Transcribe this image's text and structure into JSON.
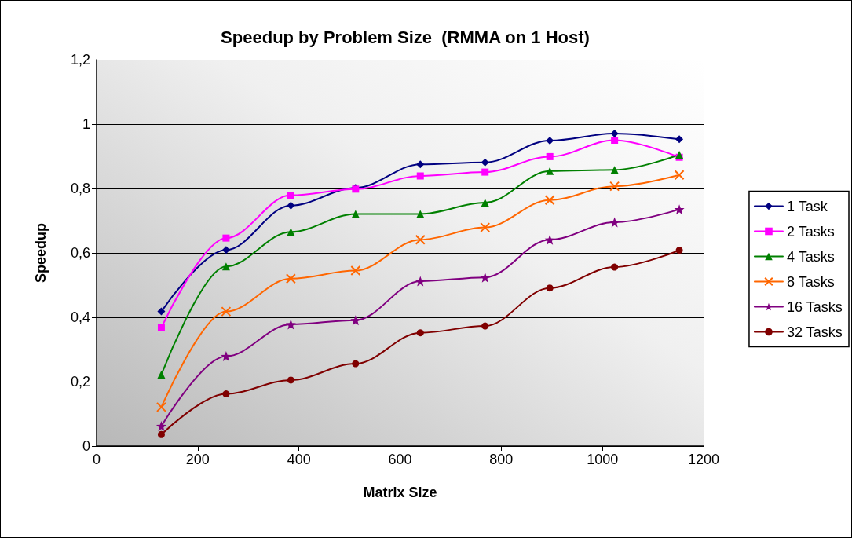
{
  "chart_data": {
    "type": "line",
    "title": "Speedup by Problem Size  (RMMA on 1 Host)",
    "xlabel": "Matrix Size",
    "ylabel": "Speedup",
    "x": [
      128,
      256,
      384,
      512,
      640,
      768,
      896,
      1024,
      1152
    ],
    "series": [
      {
        "name": "1 Task",
        "color": "#000080",
        "marker": "diamond",
        "values": [
          0.418,
          0.609,
          0.747,
          0.802,
          0.875,
          0.881,
          0.949,
          0.971,
          0.953
        ]
      },
      {
        "name": "2 Tasks",
        "color": "#ff00ff",
        "marker": "square",
        "values": [
          0.368,
          0.646,
          0.779,
          0.798,
          0.839,
          0.851,
          0.899,
          0.95,
          0.897
        ]
      },
      {
        "name": "4 Tasks",
        "color": "#008000",
        "marker": "triangle",
        "values": [
          0.222,
          0.558,
          0.665,
          0.721,
          0.721,
          0.756,
          0.854,
          0.858,
          0.905
        ]
      },
      {
        "name": "8 Tasks",
        "color": "#ff6600",
        "marker": "cross",
        "values": [
          0.121,
          0.418,
          0.52,
          0.545,
          0.641,
          0.679,
          0.764,
          0.807,
          0.842
        ]
      },
      {
        "name": "16 Tasks",
        "color": "#800080",
        "marker": "star",
        "values": [
          0.062,
          0.279,
          0.378,
          0.391,
          0.512,
          0.524,
          0.641,
          0.695,
          0.735
        ]
      },
      {
        "name": "32 Tasks",
        "color": "#800000",
        "marker": "circle",
        "values": [
          0.036,
          0.162,
          0.205,
          0.256,
          0.352,
          0.373,
          0.491,
          0.556,
          0.608
        ]
      }
    ],
    "xlim": [
      0,
      1200
    ],
    "xticks": [
      0,
      200,
      400,
      600,
      800,
      1000,
      1200
    ],
    "ylim": [
      0,
      1.2
    ],
    "yticks": [
      0,
      {
        "value": 0.2,
        "label": "0,2"
      },
      {
        "value": 0.4,
        "label": "0,4"
      },
      {
        "value": 0.6,
        "label": "0,6"
      },
      {
        "value": 0.8,
        "label": "0,8"
      },
      1,
      {
        "value": 1.2,
        "label": "1,2"
      }
    ],
    "grid": "y",
    "legend": "right",
    "line_style": "solid"
  }
}
